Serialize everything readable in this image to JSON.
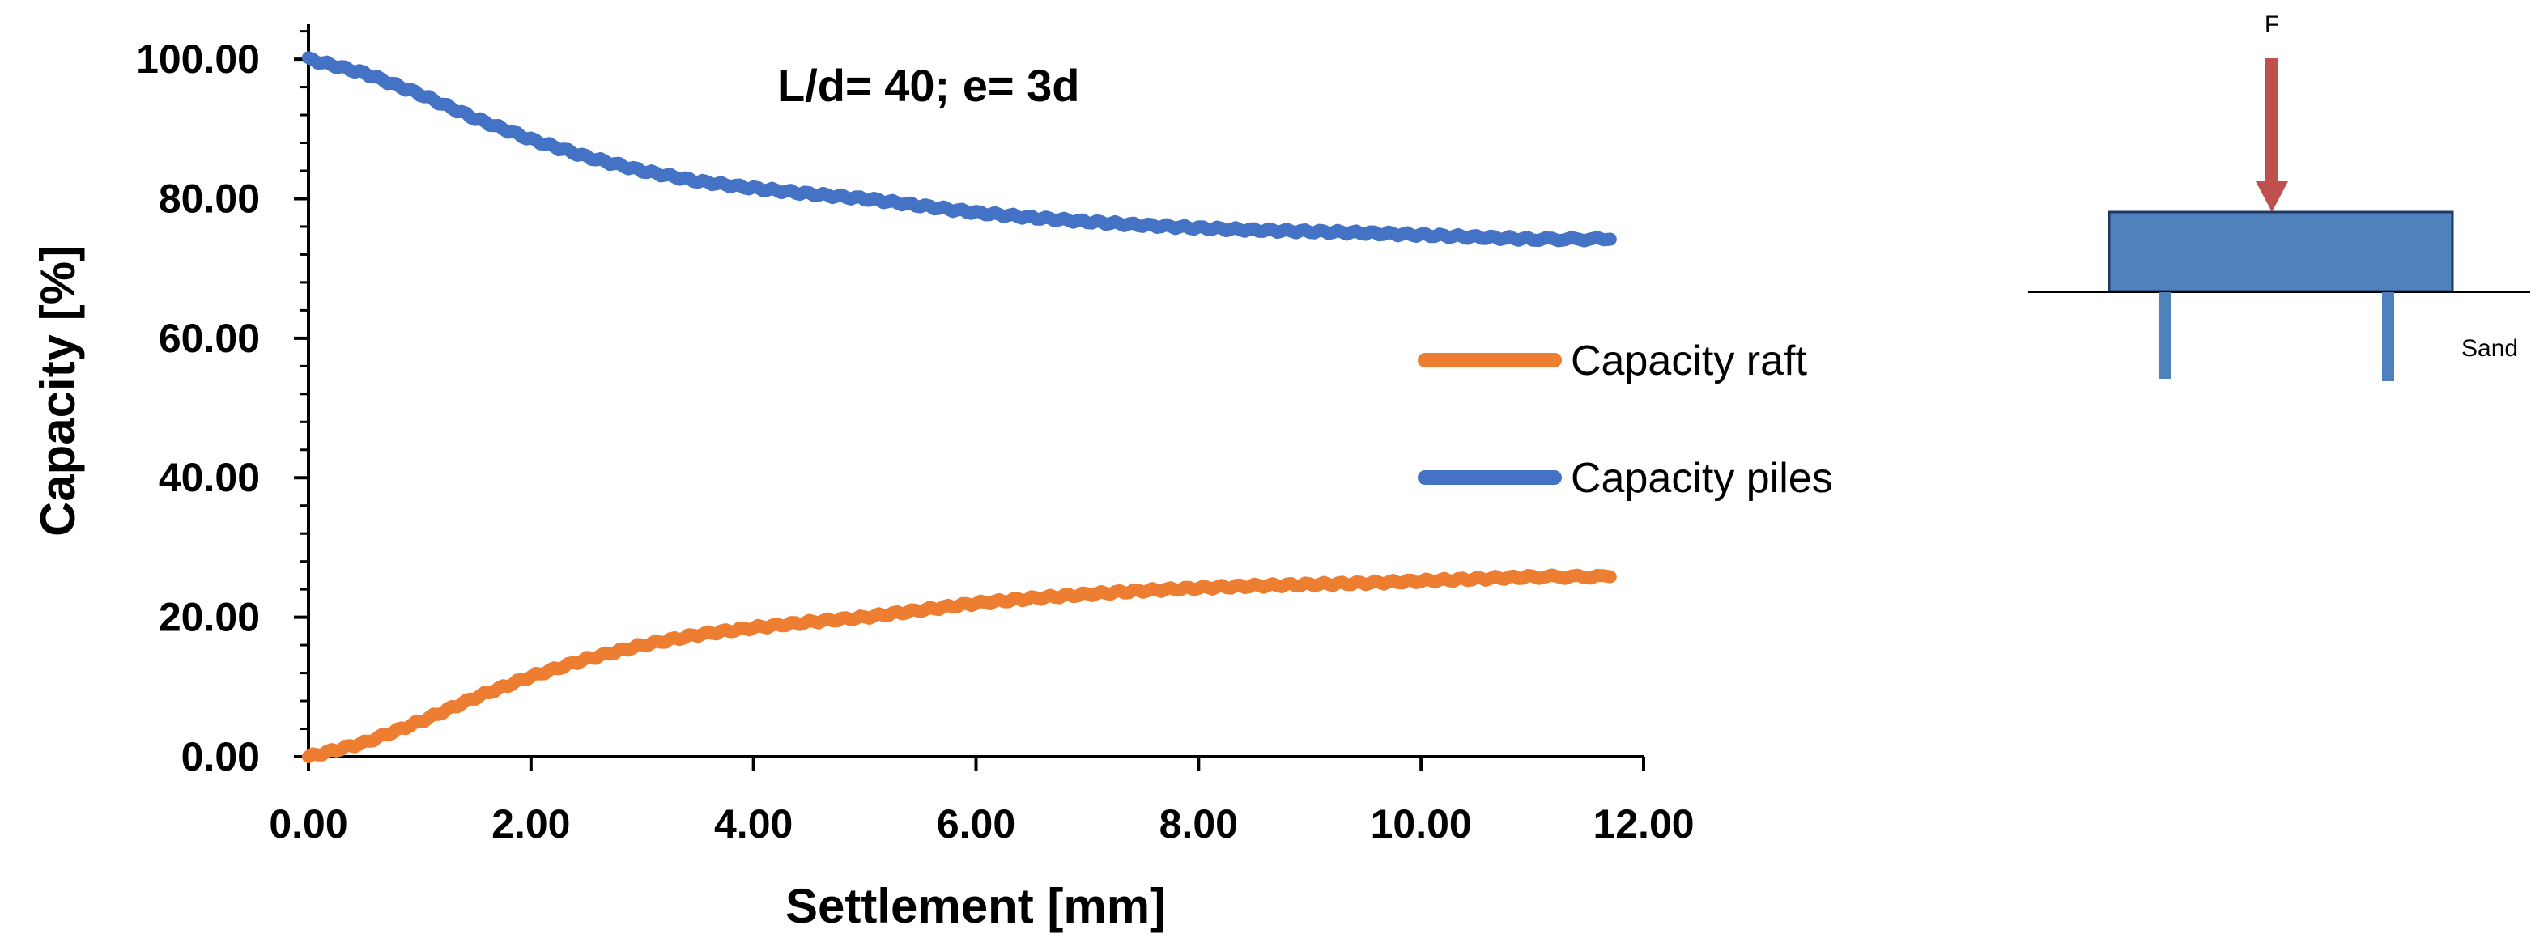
{
  "chart_data": {
    "type": "line",
    "title": "",
    "annotation": "L/d= 40; e= 3d",
    "xlabel": "Settlement [mm]",
    "ylabel": "Capacity [%]",
    "xlim": [
      0,
      12
    ],
    "ylim": [
      0,
      105
    ],
    "x_ticks": [
      0,
      2,
      4,
      6,
      8,
      10,
      12
    ],
    "x_tick_labels": [
      "0.00",
      "2.00",
      "4.00",
      "6.00",
      "8.00",
      "10.00",
      "12.00"
    ],
    "y_ticks": [
      0,
      20,
      40,
      60,
      80,
      100
    ],
    "y_tick_labels": [
      "0.00",
      "20.00",
      "40.00",
      "60.00",
      "80.00",
      "100.00"
    ],
    "grid": false,
    "legend_position": "right",
    "series": [
      {
        "name": "Capacity raft",
        "color": "#ED7D31",
        "x": [
          0,
          0.5,
          1.0,
          1.5,
          2.0,
          2.5,
          3.0,
          3.5,
          4.0,
          4.5,
          5.0,
          5.5,
          6.0,
          6.5,
          7.0,
          7.5,
          8.0,
          8.5,
          9.0,
          9.5,
          10.0,
          10.5,
          11.0,
          11.7
        ],
        "values": [
          0,
          2,
          5,
          8.5,
          11.5,
          14,
          16,
          17.5,
          18.5,
          19.3,
          20,
          21,
          22,
          22.7,
          23.3,
          23.8,
          24.2,
          24.5,
          24.7,
          24.9,
          25.2,
          25.5,
          25.8,
          25.8
        ]
      },
      {
        "name": "Capacity piles",
        "color": "#4472C4",
        "x": [
          0,
          0.5,
          1.0,
          1.5,
          2.0,
          2.5,
          3.0,
          3.5,
          4.0,
          4.5,
          5.0,
          5.5,
          6.0,
          6.5,
          7.0,
          7.5,
          8.0,
          8.5,
          9.0,
          9.5,
          10.0,
          10.5,
          11.0,
          11.7
        ],
        "values": [
          100,
          98,
          95,
          91.5,
          88.5,
          86,
          84,
          82.5,
          81.5,
          80.7,
          80,
          79,
          78,
          77.3,
          76.7,
          76.2,
          75.8,
          75.5,
          75.3,
          75.1,
          74.8,
          74.5,
          74.2,
          74.2
        ]
      }
    ]
  },
  "diagram": {
    "force_label": "F",
    "soil_label": "Sand",
    "arrow_color": "#C0504D",
    "raft_color": "#4F81BD",
    "raft_border": "#1F3864",
    "pile_color": "#4F81BD"
  }
}
